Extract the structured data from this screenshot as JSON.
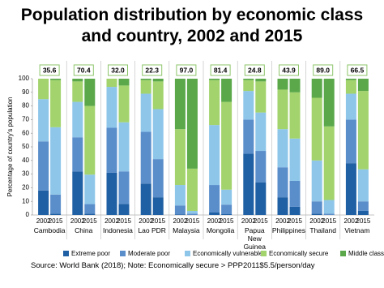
{
  "chart_data": {
    "type": "stacked_bar",
    "title": "Population distribution by economic class\nand country, 2002 and 2015",
    "y_label": "Percentage of country's population",
    "source": "Source: World Bank (2018); Note: Economically secure > PPP2011$5.5/person/day",
    "categories": [
      "Cambodia",
      "China",
      "Indonesia",
      "Lao PDR",
      "Malaysia",
      "Mongolia",
      "Papua\nNew Guinea",
      "Philippines",
      "Thailand",
      "Vietnam"
    ],
    "years": [
      "2002",
      "2015"
    ],
    "highlight": {
      "values": [
        35.6,
        70.4,
        32.0,
        22.3,
        97.0,
        81.4,
        24.8,
        43.9,
        89.0,
        66.5
      ],
      "value_labels": [
        "35.6",
        "70.4",
        "32.0",
        "22.3",
        "97.0",
        "81.4",
        "24.8",
        "43.9",
        "89.0",
        "66.5"
      ]
    },
    "series": [
      {
        "name": "Extreme poor",
        "color": "#1f5fa3",
        "values": [
          [
            18,
            1
          ],
          [
            32,
            1
          ],
          [
            31,
            8
          ],
          [
            23,
            13
          ],
          [
            0.5,
            0
          ],
          [
            2,
            0.6
          ],
          [
            45,
            24
          ],
          [
            13,
            6
          ],
          [
            1,
            0
          ],
          [
            38,
            3
          ]
        ]
      },
      {
        "name": "Moderate poor",
        "color": "#5a8ecb",
        "values": [
          [
            36,
            14
          ],
          [
            25,
            7
          ],
          [
            33,
            24
          ],
          [
            38,
            28
          ],
          [
            6.5,
            1
          ],
          [
            20,
            7
          ],
          [
            25,
            23
          ],
          [
            22,
            19
          ],
          [
            9,
            1
          ],
          [
            32,
            7
          ]
        ]
      },
      {
        "name": "Economically vulnerable",
        "color": "#8ec6ea",
        "values": [
          [
            31,
            49.4
          ],
          [
            26,
            21.6
          ],
          [
            30,
            36
          ],
          [
            28,
            36.7
          ],
          [
            15,
            2
          ],
          [
            44,
            11
          ],
          [
            21,
            28.2
          ],
          [
            28,
            31.1
          ],
          [
            30,
            10
          ],
          [
            19,
            23.5
          ]
        ]
      },
      {
        "name": "Economically secure",
        "color": "#a2d36c",
        "values": [
          [
            15,
            34.6
          ],
          [
            15,
            50.4
          ],
          [
            6,
            27
          ],
          [
            10,
            20.3
          ],
          [
            41,
            31
          ],
          [
            33,
            64.4
          ],
          [
            8,
            22.8
          ],
          [
            29,
            33.9
          ],
          [
            46,
            54
          ],
          [
            10,
            57.5
          ]
        ]
      },
      {
        "name": "Middle class",
        "color": "#5aa84a",
        "values": [
          [
            0,
            1
          ],
          [
            2,
            20
          ],
          [
            0,
            5
          ],
          [
            1,
            2
          ],
          [
            37,
            66
          ],
          [
            1,
            17
          ],
          [
            1,
            2
          ],
          [
            8,
            10
          ],
          [
            14,
            35
          ],
          [
            1,
            9
          ]
        ]
      }
    ],
    "ylim": [
      0,
      100
    ],
    "yticks": [
      0,
      10,
      20,
      30,
      40,
      50,
      60,
      70,
      80,
      90,
      100
    ]
  }
}
